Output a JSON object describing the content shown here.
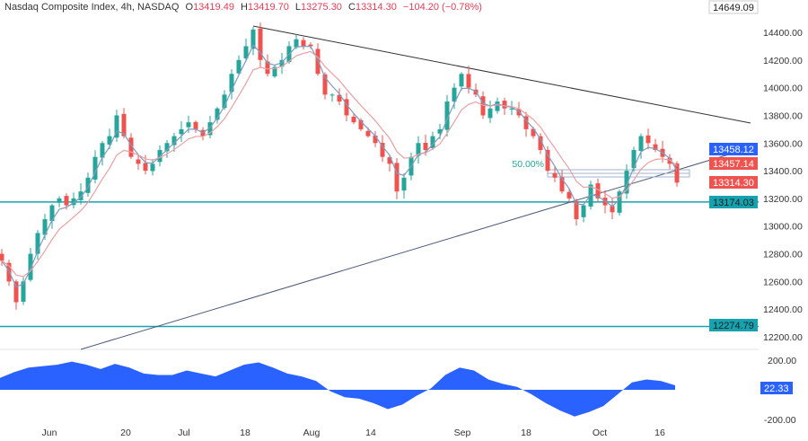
{
  "header": {
    "symbol": "Nasdaq Composite Index, 4h, NASDAQ",
    "open_label": "O",
    "open": "13419.49",
    "high_label": "H",
    "high": "13419.70",
    "low_label": "L",
    "low": "13275.30",
    "close_label": "C",
    "close": "13314.30",
    "change": "−104.20 (−0.78%)"
  },
  "colors": {
    "up": "#26a69a",
    "down": "#ef5350",
    "ma_fast": "#7f9bbf",
    "ma_slow": "#e8a0a4",
    "support": "#17a2b0",
    "trend": "#333333",
    "oscillator": "#2962ff"
  },
  "chart_data": {
    "type": "candlestick",
    "y_ticks": [
      "14400.00",
      "14200.00",
      "14000.00",
      "13800.00",
      "13600.00",
      "13400.00",
      "13200.00",
      "13000.00",
      "12800.00",
      "12600.00",
      "12400.00",
      "12200.00"
    ],
    "ylim": [
      12150,
      14650
    ],
    "x_ticks": [
      "Jun",
      "20",
      "Jul",
      "18",
      "Aug",
      "14",
      "Sep",
      "18",
      "Oct",
      "16"
    ],
    "closes": [
      12750,
      12600,
      12450,
      12600,
      12800,
      12950,
      13050,
      13150,
      13200,
      13150,
      13200,
      13250,
      13350,
      13500,
      13600,
      13650,
      13800,
      13650,
      13500,
      13450,
      13400,
      13450,
      13550,
      13600,
      13650,
      13700,
      13750,
      13700,
      13650,
      13750,
      13850,
      13950,
      14100,
      14200,
      14300,
      14420,
      14200,
      14100,
      14150,
      14200,
      14300,
      14350,
      14300,
      14300,
      14100,
      13950,
      13950,
      13900,
      13800,
      13750,
      13700,
      13650,
      13600,
      13500,
      13450,
      13250,
      13350,
      13500,
      13600,
      13550,
      13650,
      13700,
      13900,
      14000,
      14100,
      14000,
      13950,
      13800,
      13850,
      13900,
      13850,
      13850,
      13800,
      13700,
      13650,
      13550,
      13400,
      13350,
      13250,
      13200,
      13050,
      13150,
      13300,
      13200,
      13150,
      13100,
      13250,
      13400,
      13550,
      13650,
      13600,
      13550,
      13500,
      13450,
      13314
    ],
    "price_tags": [
      {
        "label": "14649.09",
        "color": "#ffffff"
      },
      {
        "label": "13458.12",
        "color": "#2962ff"
      },
      {
        "label": "13457.14",
        "color": "#ef5350"
      },
      {
        "label": "13314.30",
        "color": "#ef5350"
      },
      {
        "label": "13174.03",
        "color": "#17a2b0"
      },
      {
        "label": "12274.79",
        "color": "#17a2b0"
      }
    ],
    "horizontal_levels": [
      13174.03,
      12274.79
    ],
    "fib_label": "50.00%",
    "oscillator": {
      "values": [
        80,
        120,
        150,
        160,
        170,
        190,
        170,
        140,
        175,
        150,
        110,
        100,
        100,
        130,
        110,
        90,
        130,
        170,
        185,
        150,
        110,
        90,
        60,
        -10,
        -50,
        -60,
        -90,
        -130,
        -100,
        -40,
        10,
        100,
        150,
        130,
        70,
        40,
        20,
        -30,
        -90,
        -140,
        -180,
        -150,
        -110,
        -30,
        50,
        70,
        60,
        30
      ],
      "ticks": [
        "200.00",
        "-200.00"
      ],
      "current": "22.33"
    }
  }
}
